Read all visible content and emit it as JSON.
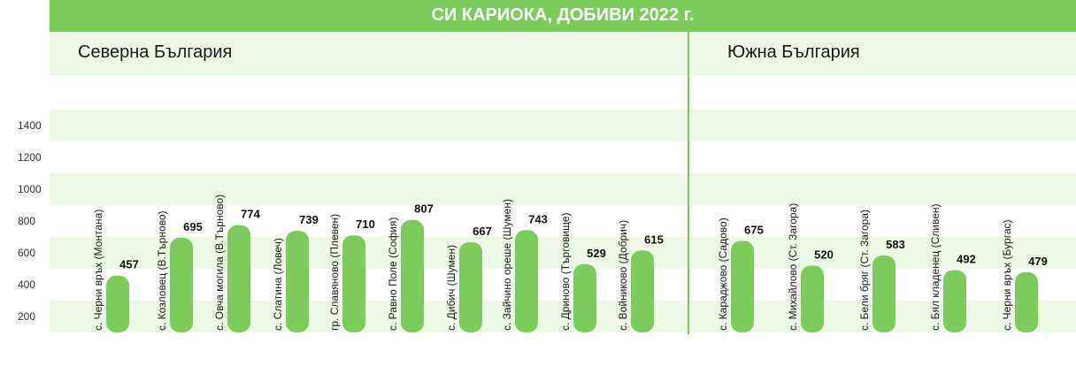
{
  "colors": {
    "accent": "#7ccc5c",
    "band": "#eef8e6",
    "bar": "#7ccc5c"
  },
  "header": {
    "title": "СИ КАРИОКА, ДОБИВИ 2022 г."
  },
  "regions": {
    "north": "Северна България",
    "south": "Южна България"
  },
  "chart_data": {
    "type": "bar",
    "title": "СИ КАРИОКА, ДОБИВИ 2022 г.",
    "xlabel": "",
    "ylabel": "",
    "ylim": [
      100,
      1400
    ],
    "y_ticks": [
      200,
      400,
      600,
      800,
      1000,
      1200,
      1400
    ],
    "grid": "alternating horizontal bands",
    "groups": [
      {
        "name": "Северна България",
        "count": 10
      },
      {
        "name": "Южна България",
        "count": 5
      }
    ],
    "categories": [
      "с. Черни връх (Монтана)",
      "с. Козловец (В.Търново)",
      "с. Овча могила (В.Търново)",
      "с. Слатина (Ловеч)",
      "гр. Славяново (Плевен)",
      "с. Равно Поле (София)",
      "с. Дибич (Шумен)",
      "с. Зайчино ореше (Шумен)",
      "с. Дриново (Търговище)",
      "с. Войниково (Добрич)",
      "с. Караджово (Садово)",
      "с. Михайлово (Ст. Загора)",
      "с. Бели бряг (Ст. Загора)",
      "с. Бял кладенец (Сливен)",
      "с. Черни връх (Бургас)"
    ],
    "values": [
      457,
      695,
      774,
      739,
      710,
      807,
      667,
      743,
      529,
      615,
      675,
      520,
      583,
      492,
      479
    ]
  }
}
